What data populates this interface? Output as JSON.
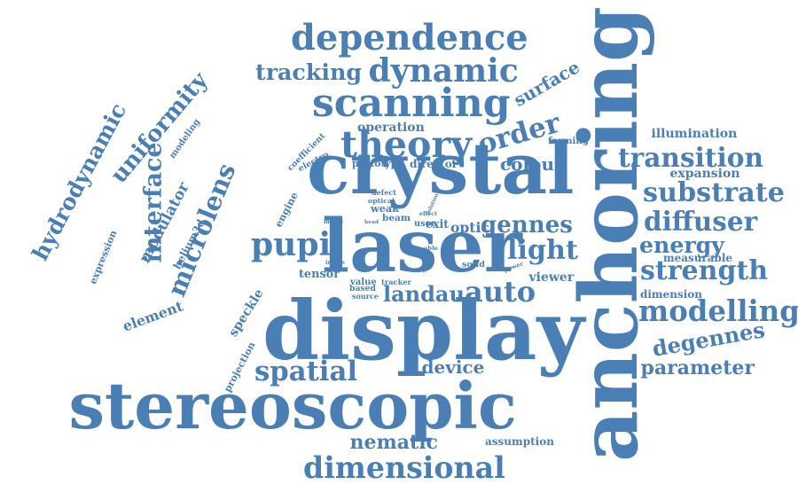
{
  "palette": {
    "word_color": "#4a7fb5",
    "background": "#ffffff"
  },
  "words": [
    {
      "id": "stereoscopic",
      "text": "stereoscopic",
      "orientation": "horizontal"
    },
    {
      "id": "display",
      "text": "display",
      "orientation": "horizontal"
    },
    {
      "id": "anchoring",
      "text": "anchoring",
      "orientation": "vertical"
    },
    {
      "id": "crystal",
      "text": "crystal",
      "orientation": "horizontal"
    },
    {
      "id": "laser",
      "text": "laser",
      "orientation": "horizontal"
    },
    {
      "id": "microlens",
      "text": "microlens",
      "orientation": "rotated"
    },
    {
      "id": "modulator",
      "text": "modulator",
      "orientation": "rotated"
    },
    {
      "id": "dependence",
      "text": "dependence",
      "orientation": "horizontal"
    },
    {
      "id": "scanning",
      "text": "scanning",
      "orientation": "horizontal"
    },
    {
      "id": "dynamic",
      "text": "dynamic",
      "orientation": "horizontal"
    },
    {
      "id": "theory",
      "text": "theory",
      "orientation": "horizontal"
    },
    {
      "id": "order",
      "text": "order",
      "orientation": "rotated"
    },
    {
      "id": "dimensional",
      "text": "dimensional",
      "orientation": "horizontal"
    },
    {
      "id": "transition",
      "text": "transition",
      "orientation": "horizontal"
    },
    {
      "id": "substrate",
      "text": "substrate",
      "orientation": "horizontal"
    },
    {
      "id": "diffuser",
      "text": "diffuser",
      "orientation": "horizontal"
    },
    {
      "id": "strength",
      "text": "strength",
      "orientation": "horizontal"
    },
    {
      "id": "modelling",
      "text": "modelling",
      "orientation": "horizontal"
    },
    {
      "id": "degennes",
      "text": "degennes",
      "orientation": "rotated"
    },
    {
      "id": "uniformity",
      "text": "uniformity",
      "orientation": "rotated"
    },
    {
      "id": "hydrodynamic",
      "text": "hydrodynamic",
      "orientation": "rotated"
    },
    {
      "id": "pupil",
      "text": "pupil",
      "orientation": "horizontal"
    },
    {
      "id": "speckle",
      "text": "speckle",
      "orientation": "rotated"
    },
    {
      "id": "spatial",
      "text": "spatial",
      "orientation": "horizontal"
    },
    {
      "id": "auto",
      "text": "auto",
      "orientation": "horizontal"
    },
    {
      "id": "light",
      "text": "light",
      "orientation": "horizontal"
    },
    {
      "id": "gennes",
      "text": "gennes",
      "orientation": "horizontal"
    },
    {
      "id": "optic",
      "text": "optic",
      "orientation": "horizontal"
    },
    {
      "id": "landau",
      "text": "landau",
      "orientation": "horizontal"
    },
    {
      "id": "interface",
      "text": "interface",
      "orientation": "vertical"
    },
    {
      "id": "expression",
      "text": "expression",
      "orientation": "rotated"
    },
    {
      "id": "tracking",
      "text": "tracking",
      "orientation": "horizontal"
    },
    {
      "id": "surface",
      "text": "surface",
      "orientation": "rotated"
    },
    {
      "id": "energy",
      "text": "energy",
      "orientation": "horizontal"
    },
    {
      "id": "parameter",
      "text": "parameter",
      "orientation": "horizontal"
    },
    {
      "id": "colour",
      "text": "colour",
      "orientation": "horizontal"
    },
    {
      "id": "nematic",
      "text": "nematic",
      "orientation": "horizontal"
    },
    {
      "id": "device",
      "text": "device",
      "orientation": "horizontal"
    },
    {
      "id": "element",
      "text": "element",
      "orientation": "rotated"
    },
    {
      "id": "expansion",
      "text": "expansion",
      "orientation": "horizontal"
    },
    {
      "id": "illumination",
      "text": "illumination",
      "orientation": "horizontal"
    },
    {
      "id": "operation",
      "text": "operation",
      "orientation": "horizontal"
    },
    {
      "id": "director",
      "text": "director",
      "orientation": "horizontal"
    },
    {
      "id": "prototype",
      "text": "prototype",
      "orientation": "horizontal"
    },
    {
      "id": "tensor",
      "text": "tensor",
      "orientation": "horizontal"
    },
    {
      "id": "viewer",
      "text": "viewer",
      "orientation": "horizontal"
    },
    {
      "id": "measurable",
      "text": "measurable",
      "orientation": "horizontal"
    },
    {
      "id": "dimension",
      "text": "dimension",
      "orientation": "horizontal"
    },
    {
      "id": "assumption",
      "text": "assumption",
      "orientation": "horizontal"
    },
    {
      "id": "forming",
      "text": "forming",
      "orientation": "horizontal"
    },
    {
      "id": "engine",
      "text": "engine",
      "orientation": "rotated"
    },
    {
      "id": "electro",
      "text": "electro",
      "orientation": "rotated"
    },
    {
      "id": "coefficient",
      "text": "coefficient",
      "orientation": "rotated"
    },
    {
      "id": "modeling",
      "text": "modeling",
      "orientation": "rotated"
    },
    {
      "id": "helium3d",
      "text": "helium3d",
      "orientation": "rotated"
    },
    {
      "id": "projection",
      "text": "projection",
      "orientation": "rotated"
    },
    {
      "id": "weak",
      "text": "weak",
      "orientation": "horizontal"
    },
    {
      "id": "beam",
      "text": "beam",
      "orientation": "horizontal"
    },
    {
      "id": "exit",
      "text": "exit",
      "orientation": "horizontal"
    },
    {
      "id": "value",
      "text": "value",
      "orientation": "horizontal"
    },
    {
      "id": "based",
      "text": "based",
      "orientation": "horizontal"
    },
    {
      "id": "source",
      "text": "source",
      "orientation": "horizontal"
    },
    {
      "id": "tracker",
      "text": "tracker",
      "orientation": "horizontal"
    },
    {
      "id": "solid",
      "text": "solid",
      "orientation": "horizontal"
    },
    {
      "id": "power",
      "text": "power",
      "orientation": "rotated"
    },
    {
      "id": "defect",
      "text": "defect",
      "orientation": "horizontal"
    },
    {
      "id": "optical",
      "text": "optical",
      "orientation": "horizontal"
    },
    {
      "id": "model",
      "text": "model",
      "orientation": "horizontal"
    },
    {
      "id": "image",
      "text": "image",
      "orientation": "horizontal"
    },
    {
      "id": "solution",
      "text": "solution",
      "orientation": "rotated"
    },
    {
      "id": "effect",
      "text": "effect",
      "orientation": "horizontal"
    },
    {
      "id": "user",
      "text": "user",
      "orientation": "horizontal"
    },
    {
      "id": "head",
      "text": "head",
      "orientation": "horizontal"
    },
    {
      "id": "able",
      "text": "able",
      "orientation": "horizontal"
    },
    {
      "id": "trunk",
      "text": "trunk",
      "orientation": "rotated"
    }
  ]
}
